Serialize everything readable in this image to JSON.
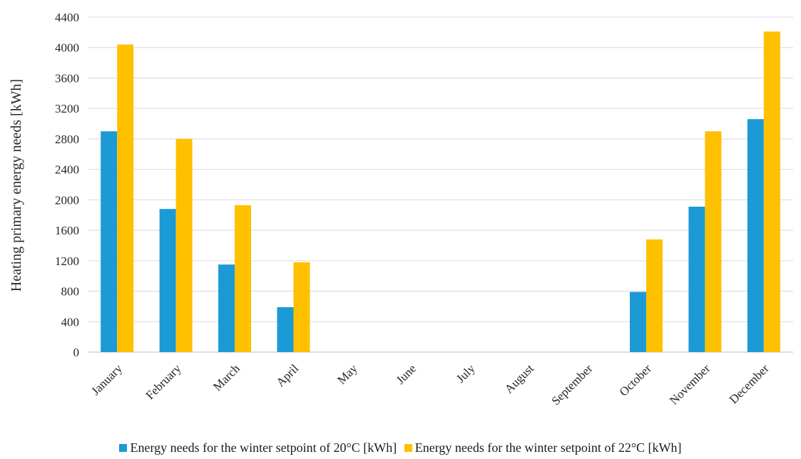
{
  "chart_data": {
    "type": "bar",
    "title": "",
    "xlabel": "",
    "ylabel": "Heating primary energy needs  [kWh]",
    "ylim": [
      0,
      4400
    ],
    "yticks": [
      0,
      400,
      800,
      1200,
      1600,
      2000,
      2400,
      2800,
      3200,
      3600,
      4000,
      4400
    ],
    "grid": true,
    "legend_position": "bottom",
    "categories": [
      "January",
      "February",
      "March",
      "April",
      "May",
      "June",
      "July",
      "August",
      "September",
      "October",
      "November",
      "December"
    ],
    "series": [
      {
        "name": "Energy needs for the winter setpoint of 20°C [kWh]",
        "color": "#1b9ad6",
        "values": [
          2900,
          1880,
          1150,
          590,
          0,
          0,
          0,
          0,
          0,
          790,
          1910,
          3060
        ]
      },
      {
        "name": "Energy needs for the winter setpoint of 22°C [kWh]",
        "color": "#ffc000",
        "values": [
          4040,
          2800,
          1930,
          1180,
          0,
          0,
          0,
          0,
          0,
          1480,
          2900,
          4210
        ]
      }
    ]
  }
}
